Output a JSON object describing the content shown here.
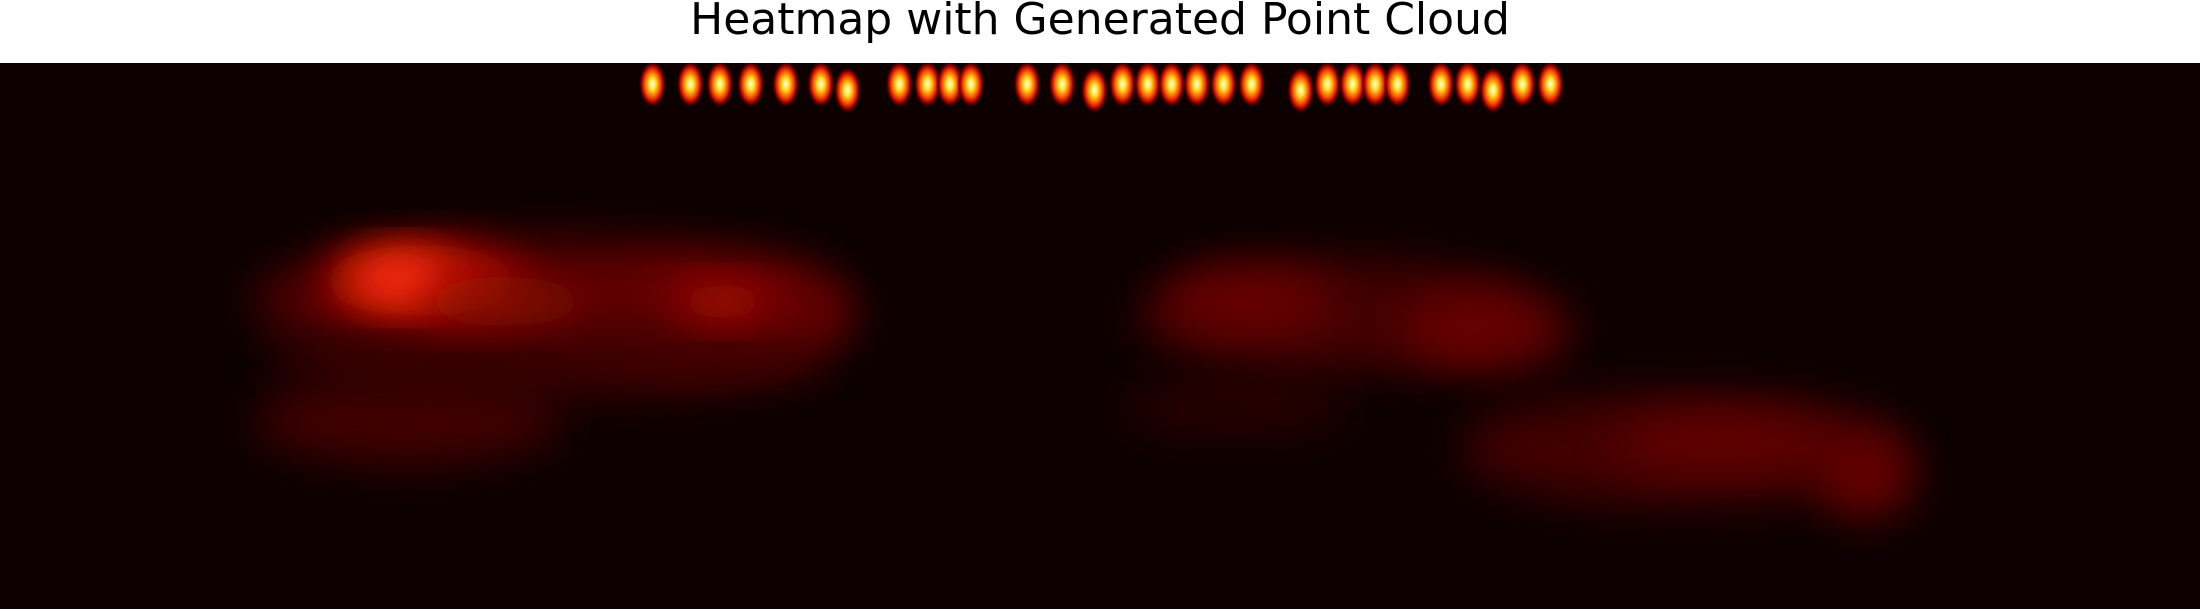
{
  "title": "Heatmap with Generated Point Cloud"
}
